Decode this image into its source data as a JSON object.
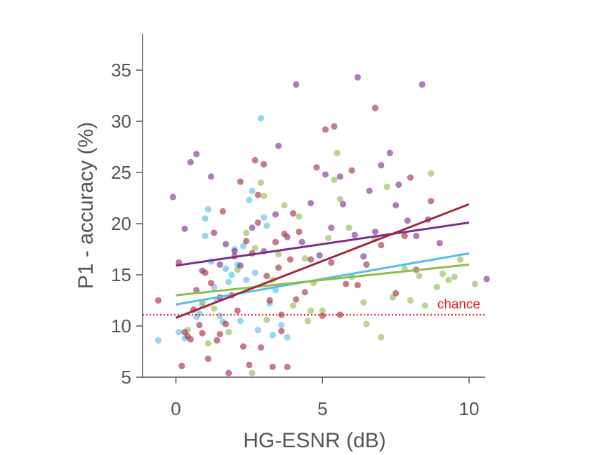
{
  "chart_data": {
    "type": "scatter",
    "xlabel": "HG-ESNR (dB)",
    "ylabel": "P1 - accuracy (%)",
    "xlim": [
      -1.2,
      10.6
    ],
    "ylim": [
      5,
      38
    ],
    "xticks": [
      0,
      5,
      10
    ],
    "yticks": [
      5,
      10,
      15,
      20,
      25,
      30,
      35
    ],
    "grid": false,
    "legend": "none",
    "reference_line": {
      "y": 11.1,
      "label": "chance",
      "color": "#e8202a",
      "style": "dotted"
    },
    "series": [
      {
        "color": "#56bde8",
        "fit": {
          "x": [
            0,
            10
          ],
          "y": [
            12.1,
            17.1
          ]
        },
        "points": [
          [
            -0.6,
            8.6
          ],
          [
            0.1,
            9.4
          ],
          [
            0.3,
            8.8
          ],
          [
            0.8,
            11.2
          ],
          [
            0.9,
            12.0
          ],
          [
            1.0,
            18.8
          ],
          [
            1.1,
            21.4
          ],
          [
            1.0,
            20.5
          ],
          [
            1.2,
            16.3
          ],
          [
            1.3,
            13.8
          ],
          [
            1.4,
            12.6
          ],
          [
            1.5,
            11.0
          ],
          [
            1.6,
            10.4
          ],
          [
            1.8,
            14.3
          ],
          [
            1.9,
            15.0
          ],
          [
            2.0,
            17.5
          ],
          [
            2.1,
            16.0
          ],
          [
            2.3,
            17.8
          ],
          [
            2.4,
            14.5
          ],
          [
            2.5,
            22.3
          ],
          [
            2.6,
            23.2
          ],
          [
            2.7,
            15.2
          ],
          [
            2.8,
            9.6
          ],
          [
            2.9,
            30.3
          ],
          [
            3.0,
            20.6
          ],
          [
            3.1,
            19.8
          ],
          [
            3.2,
            12.2
          ],
          [
            3.3,
            9.1
          ],
          [
            3.4,
            13.5
          ],
          [
            3.6,
            10.1
          ],
          [
            3.8,
            8.9
          ],
          [
            2.2,
            10.5
          ],
          [
            1.7,
            15.6
          ],
          [
            0.7,
            10.9
          ]
        ]
      },
      {
        "color": "#8dbd4e",
        "fit": {
          "x": [
            0,
            10
          ],
          "y": [
            13.0,
            16.0
          ]
        },
        "points": [
          [
            0.4,
            9.6
          ],
          [
            0.9,
            12.3
          ],
          [
            1.3,
            11.7
          ],
          [
            1.8,
            9.4
          ],
          [
            2.1,
            15.5
          ],
          [
            2.4,
            19.1
          ],
          [
            2.7,
            17.6
          ],
          [
            2.9,
            24.0
          ],
          [
            3.0,
            22.7
          ],
          [
            3.3,
            14.5
          ],
          [
            3.5,
            17.0
          ],
          [
            3.7,
            21.8
          ],
          [
            4.0,
            12.0
          ],
          [
            4.2,
            20.7
          ],
          [
            4.4,
            16.6
          ],
          [
            4.5,
            10.5
          ],
          [
            4.7,
            14.2
          ],
          [
            5.0,
            11.5
          ],
          [
            5.2,
            18.6
          ],
          [
            5.4,
            24.3
          ],
          [
            5.5,
            26.9
          ],
          [
            5.6,
            22.4
          ],
          [
            5.9,
            19.6
          ],
          [
            6.0,
            14.8
          ],
          [
            6.4,
            12.3
          ],
          [
            6.5,
            10.2
          ],
          [
            6.8,
            18.5
          ],
          [
            7.0,
            8.9
          ],
          [
            7.2,
            23.6
          ],
          [
            7.4,
            12.8
          ],
          [
            7.8,
            15.6
          ],
          [
            8.0,
            12.5
          ],
          [
            8.3,
            14.9
          ],
          [
            8.5,
            12.0
          ],
          [
            8.7,
            24.9
          ],
          [
            8.9,
            13.8
          ],
          [
            9.1,
            15.1
          ],
          [
            9.3,
            14.5
          ],
          [
            9.5,
            14.8
          ],
          [
            9.7,
            16.5
          ],
          [
            10.2,
            14.1
          ],
          [
            2.6,
            5.4
          ],
          [
            3.1,
            10.6
          ],
          [
            4.6,
            11.5
          ],
          [
            1.1,
            8.3
          ]
        ]
      },
      {
        "color": "#7b2d8e",
        "fit": {
          "x": [
            0,
            10
          ],
          "y": [
            15.9,
            20.1
          ]
        },
        "points": [
          [
            -0.1,
            22.6
          ],
          [
            0.3,
            19.5
          ],
          [
            0.5,
            26.0
          ],
          [
            0.7,
            26.8
          ],
          [
            0.9,
            15.4
          ],
          [
            1.2,
            24.6
          ],
          [
            1.5,
            16.0
          ],
          [
            1.7,
            18.0
          ],
          [
            2.2,
            15.9
          ],
          [
            2.6,
            19.6
          ],
          [
            3.0,
            17.3
          ],
          [
            3.4,
            20.9
          ],
          [
            3.5,
            27.6
          ],
          [
            3.8,
            18.7
          ],
          [
            4.1,
            33.6
          ],
          [
            4.3,
            18.2
          ],
          [
            4.6,
            22.0
          ],
          [
            4.9,
            16.9
          ],
          [
            5.1,
            24.8
          ],
          [
            5.3,
            19.6
          ],
          [
            5.7,
            21.9
          ],
          [
            6.1,
            18.9
          ],
          [
            6.2,
            34.3
          ],
          [
            6.4,
            16.8
          ],
          [
            6.6,
            23.2
          ],
          [
            6.8,
            19.2
          ],
          [
            7.0,
            25.7
          ],
          [
            7.3,
            26.9
          ],
          [
            7.6,
            23.8
          ],
          [
            7.9,
            20.3
          ],
          [
            8.2,
            18.8
          ],
          [
            8.4,
            33.6
          ],
          [
            8.6,
            20.4
          ],
          [
            9.0,
            18.1
          ],
          [
            10.6,
            14.6
          ],
          [
            2.0,
            17.3
          ],
          [
            5.6,
            24.6
          ],
          [
            7.5,
            21.8
          ]
        ]
      },
      {
        "color": "#a4283f",
        "fit": {
          "x": [
            0,
            10
          ],
          "y": [
            10.8,
            21.9
          ]
        },
        "points": [
          [
            -0.6,
            12.5
          ],
          [
            0.1,
            16.2
          ],
          [
            0.2,
            6.1
          ],
          [
            0.4,
            9.0
          ],
          [
            0.5,
            8.7
          ],
          [
            0.6,
            11.6
          ],
          [
            0.7,
            13.5
          ],
          [
            0.8,
            10.1
          ],
          [
            0.9,
            9.3
          ],
          [
            1.0,
            15.2
          ],
          [
            1.1,
            6.8
          ],
          [
            1.2,
            14.2
          ],
          [
            1.3,
            19.1
          ],
          [
            1.4,
            8.6
          ],
          [
            1.5,
            12.8
          ],
          [
            1.6,
            21.2
          ],
          [
            1.7,
            10.2
          ],
          [
            1.8,
            5.4
          ],
          [
            1.9,
            13.0
          ],
          [
            2.0,
            16.8
          ],
          [
            2.1,
            11.5
          ],
          [
            2.2,
            24.1
          ],
          [
            2.3,
            8.0
          ],
          [
            2.4,
            18.3
          ],
          [
            2.5,
            6.2
          ],
          [
            2.6,
            17.1
          ],
          [
            2.7,
            26.2
          ],
          [
            2.8,
            22.8
          ],
          [
            2.9,
            7.9
          ],
          [
            3.0,
            25.8
          ],
          [
            3.1,
            14.9
          ],
          [
            3.2,
            12.5
          ],
          [
            3.3,
            6.0
          ],
          [
            3.4,
            18.2
          ],
          [
            3.5,
            15.7
          ],
          [
            3.6,
            11.1
          ],
          [
            3.7,
            19.0
          ],
          [
            3.8,
            6.0
          ],
          [
            3.9,
            16.5
          ],
          [
            4.0,
            21.0
          ],
          [
            4.1,
            12.6
          ],
          [
            4.2,
            19.2
          ],
          [
            4.4,
            13.3
          ],
          [
            4.6,
            16.5
          ],
          [
            4.8,
            25.5
          ],
          [
            5.0,
            11.0
          ],
          [
            5.1,
            29.2
          ],
          [
            5.3,
            16.2
          ],
          [
            5.4,
            29.5
          ],
          [
            5.6,
            11.1
          ],
          [
            5.8,
            14.1
          ],
          [
            6.0,
            25.2
          ],
          [
            6.2,
            14.0
          ],
          [
            6.5,
            16.0
          ],
          [
            6.8,
            31.3
          ],
          [
            7.0,
            17.9
          ],
          [
            7.5,
            13.2
          ],
          [
            7.8,
            18.8
          ],
          [
            8.0,
            24.5
          ],
          [
            8.2,
            15.5
          ],
          [
            8.7,
            22.2
          ],
          [
            0.3,
            9.4
          ],
          [
            1.5,
            9.2
          ],
          [
            2.8,
            20.1
          ],
          [
            3.6,
            9.5
          ]
        ]
      }
    ]
  }
}
